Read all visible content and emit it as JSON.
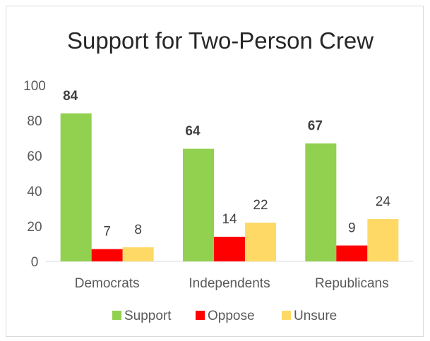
{
  "chart_data": {
    "type": "bar",
    "title": "Support for Two-Person Crew",
    "categories": [
      "Democrats",
      "Independents",
      "Republicans"
    ],
    "series": [
      {
        "name": "Support",
        "values": [
          84,
          64,
          67
        ],
        "color": "#92d050",
        "label_style": "bold"
      },
      {
        "name": "Oppose",
        "values": [
          7,
          14,
          9
        ],
        "color": "#ff0000",
        "label_style": "normal"
      },
      {
        "name": "Unsure",
        "values": [
          8,
          22,
          24
        ],
        "color": "#ffd966",
        "label_style": "normal"
      }
    ],
    "ylim": [
      0,
      100
    ],
    "yticks": [
      0,
      20,
      40,
      60,
      80,
      100
    ],
    "grid": false,
    "legend": "bottom",
    "xlabel": "",
    "ylabel": ""
  }
}
